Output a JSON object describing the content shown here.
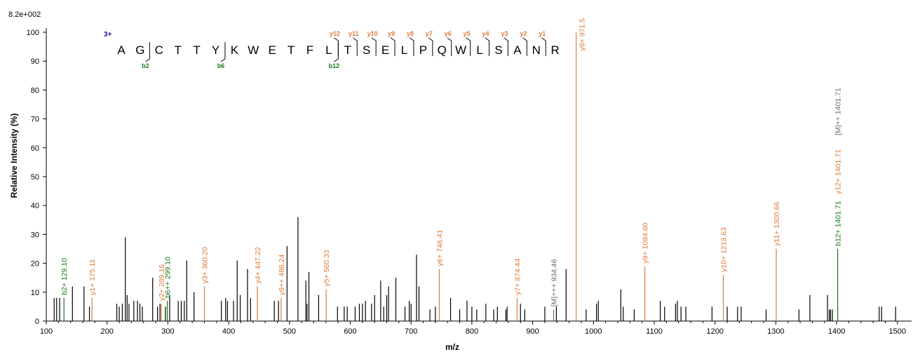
{
  "scale_label": "8.2e+002",
  "chart_data": {
    "type": "bar",
    "xlabel": "m/z",
    "ylabel": "Relative  Intensity (%)",
    "xlim": [
      100,
      1510
    ],
    "ylim": [
      0,
      100
    ],
    "x_ticks": [
      100,
      200,
      300,
      400,
      500,
      600,
      700,
      800,
      900,
      1000,
      1100,
      1200,
      1300,
      1400,
      1500
    ],
    "y_ticks": [
      0,
      10,
      20,
      30,
      40,
      50,
      60,
      70,
      80,
      90,
      100
    ],
    "colors": {
      "y_ion": "#e07b39",
      "b_ion": "#1a7a1a",
      "other": "#6e6e6e",
      "noise": "#000000",
      "charge": "#1a1a9e"
    },
    "peaks": [
      {
        "mz": 113,
        "int": 8
      },
      {
        "mz": 117,
        "int": 8
      },
      {
        "mz": 122,
        "int": 8
      },
      {
        "mz": 143,
        "int": 12
      },
      {
        "mz": 162,
        "int": 12
      },
      {
        "mz": 171,
        "int": 5
      },
      {
        "mz": 216,
        "int": 6
      },
      {
        "mz": 220,
        "int": 5
      },
      {
        "mz": 225,
        "int": 6
      },
      {
        "mz": 230,
        "int": 29
      },
      {
        "mz": 233,
        "int": 9
      },
      {
        "mz": 236,
        "int": 6
      },
      {
        "mz": 244,
        "int": 7
      },
      {
        "mz": 250,
        "int": 7
      },
      {
        "mz": 254,
        "int": 6
      },
      {
        "mz": 258,
        "int": 5
      },
      {
        "mz": 275,
        "int": 15
      },
      {
        "mz": 283,
        "int": 5
      },
      {
        "mz": 287,
        "int": 6
      },
      {
        "mz": 296,
        "int": 5
      },
      {
        "mz": 303,
        "int": 9
      },
      {
        "mz": 317,
        "int": 7
      },
      {
        "mz": 322,
        "int": 7
      },
      {
        "mz": 327,
        "int": 7
      },
      {
        "mz": 331,
        "int": 21
      },
      {
        "mz": 343,
        "int": 10
      },
      {
        "mz": 388,
        "int": 7
      },
      {
        "mz": 395,
        "int": 8
      },
      {
        "mz": 398,
        "int": 7
      },
      {
        "mz": 408,
        "int": 7
      },
      {
        "mz": 414,
        "int": 21
      },
      {
        "mz": 419,
        "int": 9
      },
      {
        "mz": 431,
        "int": 18
      },
      {
        "mz": 436,
        "int": 8
      },
      {
        "mz": 475,
        "int": 7
      },
      {
        "mz": 482,
        "int": 7
      },
      {
        "mz": 496,
        "int": 26
      },
      {
        "mz": 514,
        "int": 36
      },
      {
        "mz": 527,
        "int": 14
      },
      {
        "mz": 529,
        "int": 6
      },
      {
        "mz": 532,
        "int": 17
      },
      {
        "mz": 548,
        "int": 9
      },
      {
        "mz": 579,
        "int": 5
      },
      {
        "mz": 590,
        "int": 5
      },
      {
        "mz": 595,
        "int": 5
      },
      {
        "mz": 608,
        "int": 5
      },
      {
        "mz": 615,
        "int": 6
      },
      {
        "mz": 620,
        "int": 6
      },
      {
        "mz": 625,
        "int": 7
      },
      {
        "mz": 635,
        "int": 6
      },
      {
        "mz": 640,
        "int": 9
      },
      {
        "mz": 650,
        "int": 14
      },
      {
        "mz": 655,
        "int": 5
      },
      {
        "mz": 660,
        "int": 9
      },
      {
        "mz": 663,
        "int": 12
      },
      {
        "mz": 675,
        "int": 15
      },
      {
        "mz": 690,
        "int": 5
      },
      {
        "mz": 697,
        "int": 7
      },
      {
        "mz": 700,
        "int": 6
      },
      {
        "mz": 709,
        "int": 23
      },
      {
        "mz": 713,
        "int": 12
      },
      {
        "mz": 731,
        "int": 4
      },
      {
        "mz": 740,
        "int": 5
      },
      {
        "mz": 765,
        "int": 8
      },
      {
        "mz": 780,
        "int": 4
      },
      {
        "mz": 792,
        "int": 7
      },
      {
        "mz": 800,
        "int": 5
      },
      {
        "mz": 808,
        "int": 4
      },
      {
        "mz": 823,
        "int": 6
      },
      {
        "mz": 836,
        "int": 4
      },
      {
        "mz": 842,
        "int": 5
      },
      {
        "mz": 856,
        "int": 4
      },
      {
        "mz": 858,
        "int": 5
      },
      {
        "mz": 880,
        "int": 6
      },
      {
        "mz": 887,
        "int": 4
      },
      {
        "mz": 920,
        "int": 5
      },
      {
        "mz": 939,
        "int": 5
      },
      {
        "mz": 955,
        "int": 18
      },
      {
        "mz": 988,
        "int": 4
      },
      {
        "mz": 1005,
        "int": 6
      },
      {
        "mz": 1008,
        "int": 7
      },
      {
        "mz": 1045,
        "int": 11
      },
      {
        "mz": 1049,
        "int": 5
      },
      {
        "mz": 1067,
        "int": 4
      },
      {
        "mz": 1110,
        "int": 7
      },
      {
        "mz": 1117,
        "int": 5
      },
      {
        "mz": 1135,
        "int": 6
      },
      {
        "mz": 1138,
        "int": 7
      },
      {
        "mz": 1144,
        "int": 5
      },
      {
        "mz": 1152,
        "int": 5
      },
      {
        "mz": 1195,
        "int": 5
      },
      {
        "mz": 1220,
        "int": 5
      },
      {
        "mz": 1237,
        "int": 5
      },
      {
        "mz": 1243,
        "int": 5
      },
      {
        "mz": 1284,
        "int": 4
      },
      {
        "mz": 1338,
        "int": 4
      },
      {
        "mz": 1356,
        "int": 9
      },
      {
        "mz": 1385,
        "int": 9
      },
      {
        "mz": 1388,
        "int": 4
      },
      {
        "mz": 1390,
        "int": 4
      },
      {
        "mz": 1393,
        "int": 4
      },
      {
        "mz": 1470,
        "int": 5
      },
      {
        "mz": 1474,
        "int": 5
      },
      {
        "mz": 1497,
        "int": 5
      }
    ],
    "annotated": [
      {
        "mz": 129.1,
        "int": 8,
        "label": "b2+ 129.10",
        "kind": "b"
      },
      {
        "mz": 175.11,
        "int": 8,
        "label": "y1+ 175.11",
        "kind": "y"
      },
      {
        "mz": 289.16,
        "int": 6,
        "label": "y2+ 289.16",
        "kind": "y"
      },
      {
        "mz": 299.1,
        "int": 7,
        "label": "b6++ 299.10",
        "kind": "b"
      },
      {
        "mz": 360.2,
        "int": 12,
        "label": "y3+ 360.20",
        "kind": "y"
      },
      {
        "mz": 447.22,
        "int": 12,
        "label": "y4+ 447.22",
        "kind": "y"
      },
      {
        "mz": 486.24,
        "int": 8,
        "label": "y8++ 486.24",
        "kind": "y"
      },
      {
        "mz": 560.33,
        "int": 11,
        "label": "y5+ 560.33",
        "kind": "y"
      },
      {
        "mz": 746.41,
        "int": 18,
        "label": "y6+ 746.41",
        "kind": "y"
      },
      {
        "mz": 874.44,
        "int": 8,
        "label": "y7+ 874.44",
        "kind": "y"
      },
      {
        "mz": 934.46,
        "int": 4,
        "label": "[M]+++ 934.46",
        "kind": "m"
      },
      {
        "mz": 971.5,
        "int": 100,
        "label": "y8+ 971.5",
        "kind": "y"
      },
      {
        "mz": 1084.6,
        "int": 19,
        "label": "y9+ 1084.60",
        "kind": "y"
      },
      {
        "mz": 1213.63,
        "int": 16,
        "label": "y10+ 1213.63",
        "kind": "y"
      },
      {
        "mz": 1300.66,
        "int": 25,
        "label": "y11+ 1300.66",
        "kind": "y"
      },
      {
        "mz": 1401.71,
        "int": 25,
        "label": "b12+ 1401.71",
        "kind": "b"
      },
      {
        "mz": 1401.71,
        "int": 25,
        "label": "y12+ 1401.71",
        "kind": "y",
        "stack": 1
      },
      {
        "mz": 1401.71,
        "int": 25,
        "label": "[M]++ 1401.71",
        "kind": "m",
        "stack": 2
      }
    ]
  },
  "sequence": {
    "charge": "3+",
    "residues": [
      "A",
      "G",
      "C",
      "T",
      "T",
      "Y",
      "K",
      "W",
      "E",
      "T",
      "F",
      "L",
      "T",
      "S",
      "E",
      "L",
      "P",
      "Q",
      "W",
      "L",
      "S",
      "A",
      "N",
      "R"
    ],
    "y_ions": [
      {
        "after": 11,
        "ion": "y",
        "num": "12"
      },
      {
        "after": 12,
        "ion": "y",
        "num": "11"
      },
      {
        "after": 13,
        "ion": "y",
        "num": "10"
      },
      {
        "after": 14,
        "ion": "y",
        "num": "9"
      },
      {
        "after": 15,
        "ion": "y",
        "num": "8"
      },
      {
        "after": 16,
        "ion": "y",
        "num": "7"
      },
      {
        "after": 17,
        "ion": "y",
        "num": "6"
      },
      {
        "after": 18,
        "ion": "y",
        "num": "5"
      },
      {
        "after": 19,
        "ion": "y",
        "num": "4"
      },
      {
        "after": 20,
        "ion": "y",
        "num": "3"
      },
      {
        "after": 21,
        "ion": "y",
        "num": "2"
      },
      {
        "after": 22,
        "ion": "y",
        "num": "1"
      }
    ],
    "b_ions": [
      {
        "after": 1,
        "ion": "b",
        "num": "2"
      },
      {
        "after": 5,
        "ion": "b",
        "num": "6"
      },
      {
        "after": 11,
        "ion": "b",
        "num": "12"
      }
    ]
  }
}
